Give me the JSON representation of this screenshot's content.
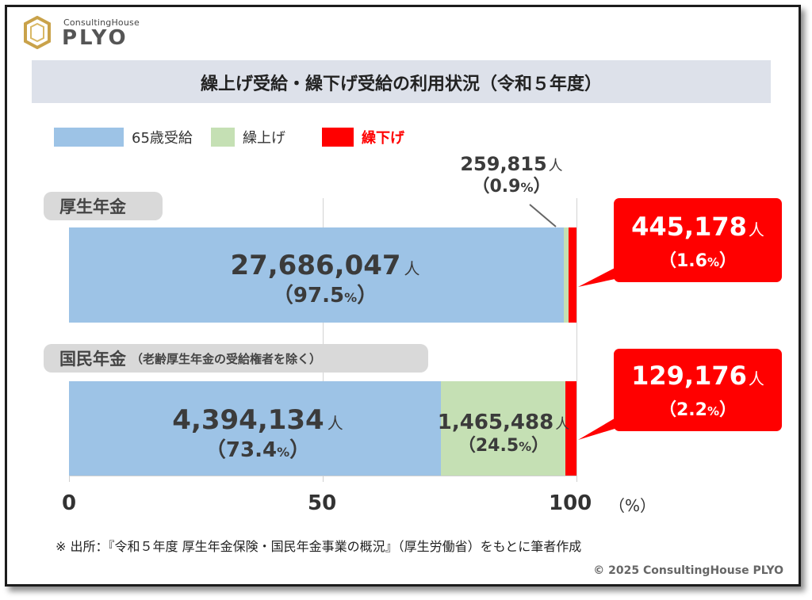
{
  "logo": {
    "small_text": "ConsultingHouse",
    "big_text": "PLYO"
  },
  "title": "繰上げ受給・繰下げ受給の利用状況（令和５年度）",
  "legend": [
    {
      "label": "65歳受給",
      "color": "#9dc3e6"
    },
    {
      "label": "繰上げ",
      "color": "#c5e0b4"
    },
    {
      "label": "繰下げ",
      "color": "#ff0000"
    }
  ],
  "chart_data": {
    "type": "bar",
    "orientation": "horizontal",
    "stacked": true,
    "xlim": [
      0,
      100
    ],
    "x_ticks": [
      "0",
      "50",
      "100"
    ],
    "x_unit": "（%）",
    "grid": true,
    "categories": [
      {
        "name": "厚生年金",
        "note": ""
      },
      {
        "name": "国民年金",
        "note": "（老齢厚生年金の受給権者を除く）"
      }
    ],
    "series": [
      {
        "name": "65歳受給",
        "color": "#9dc3e6",
        "values": [
          97.5,
          73.4
        ],
        "counts": [
          "27,686,047",
          "4,394,134"
        ],
        "pct_labels": [
          "97.5",
          "73.4"
        ]
      },
      {
        "name": "繰上げ",
        "color": "#c5e0b4",
        "values": [
          0.9,
          24.5
        ],
        "counts": [
          "259,815",
          "1,465,488"
        ],
        "pct_labels": [
          "0.9",
          "24.5"
        ]
      },
      {
        "name": "繰下げ",
        "color": "#ff0000",
        "values": [
          1.6,
          2.2
        ],
        "counts": [
          "445,178",
          "129,176"
        ],
        "pct_labels": [
          "1.6",
          "2.2"
        ]
      }
    ],
    "count_unit": "人",
    "pct_open": "（",
    "pct_sign": "%",
    "pct_close": "）"
  },
  "footnote": "※ 出所：『令和５年度 厚生年金保険・国民年金事業の概況』（厚生労働省）をもとに筆者作成",
  "copyright": "© 2025 ConsultingHouse PLYO"
}
